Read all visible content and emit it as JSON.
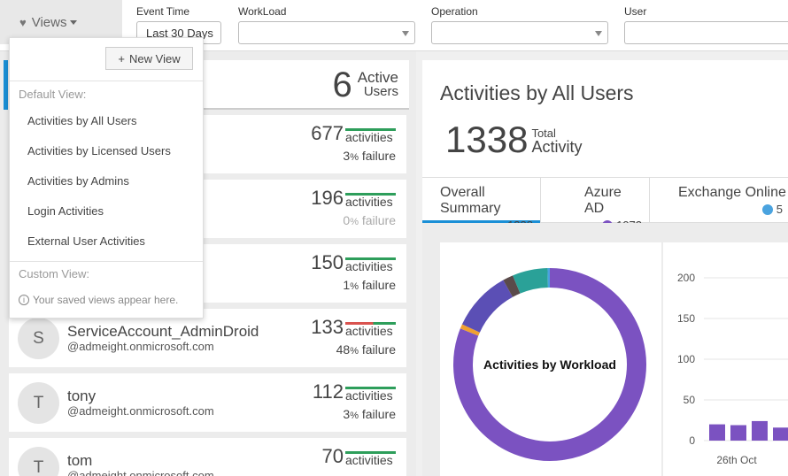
{
  "views_button": {
    "label": "Views"
  },
  "filters": {
    "event_time": {
      "label": "Event Time",
      "value": "Last 30 Days"
    },
    "workload": {
      "label": "WorkLoad",
      "value": ""
    },
    "operation": {
      "label": "Operation",
      "value": ""
    },
    "user": {
      "label": "User",
      "value": ""
    }
  },
  "active_users": {
    "count": "6",
    "line1": "Active",
    "line2": "Users"
  },
  "users": [
    {
      "initial": "",
      "name": "",
      "email": "om",
      "count": "677",
      "activities_label": "activities",
      "failure_num": "3",
      "failure_unit": "%",
      "failure_label": " failure"
    },
    {
      "initial": "",
      "name": "",
      "email": "om",
      "count": "196",
      "activities_label": "activities",
      "failure_num": "0",
      "failure_unit": "%",
      "failure_label": " failure"
    },
    {
      "initial": "",
      "name": "",
      "email": "om",
      "count": "150",
      "activities_label": "activities",
      "failure_num": "1",
      "failure_unit": "%",
      "failure_label": " failure"
    },
    {
      "initial": "S",
      "name": "ServiceAccount_AdminDroid",
      "email": "@admeight.onmicrosoft.com",
      "count": "133",
      "activities_label": "activities",
      "failure_num": "48",
      "failure_unit": "%",
      "failure_label": " failure"
    },
    {
      "initial": "T",
      "name": "tony",
      "email": "@admeight.onmicrosoft.com",
      "count": "112",
      "activities_label": "activities",
      "failure_num": "3",
      "failure_unit": "%",
      "failure_label": " failure"
    },
    {
      "initial": "T",
      "name": "tom",
      "email": "@admeight.onmicrosoft.com",
      "count": "70",
      "activities_label": "activities",
      "failure_num": "",
      "failure_unit": "",
      "failure_label": ""
    }
  ],
  "views_menu": {
    "new_view": "New View",
    "default_heading": "Default View:",
    "default_items": [
      "Activities by All Users",
      "Activities by Licensed Users",
      "Activities by Admins",
      "Login Activities",
      "External User Activities"
    ],
    "custom_heading": "Custom View:",
    "note": "Your saved views appear here."
  },
  "right": {
    "title": "Activities by All Users",
    "total_num": "1338",
    "total_small": "Total",
    "total_big": "Activity",
    "tabs": [
      {
        "label": "Overall Summary",
        "value": "1338",
        "dot_color": ""
      },
      {
        "label": "Azure AD",
        "value": "1072",
        "dot_color": "#7b52c1"
      },
      {
        "label": "Exchange Online",
        "value": "5",
        "dot_color": "#4aa3df"
      }
    ]
  },
  "chart_data": [
    {
      "type": "pie",
      "title": "Activities by Workload",
      "labels": [
        "Azure AD",
        "",
        "",
        "",
        "",
        "Exchange Online"
      ],
      "values": [
        1072,
        10,
        134,
        23,
        78,
        5
      ],
      "colors": [
        "#7b52c1",
        "#f0a030",
        "#5b4fb5",
        "#5a4a4a",
        "#2aa198",
        "#4aa3df"
      ]
    },
    {
      "type": "bar",
      "x_tick_labels": [
        "26th Oct"
      ],
      "values": [
        20,
        19,
        24,
        16
      ],
      "ylim": [
        0,
        200
      ],
      "yticks": [
        0,
        50,
        100,
        150,
        200
      ],
      "color": "#7b52c1"
    }
  ]
}
